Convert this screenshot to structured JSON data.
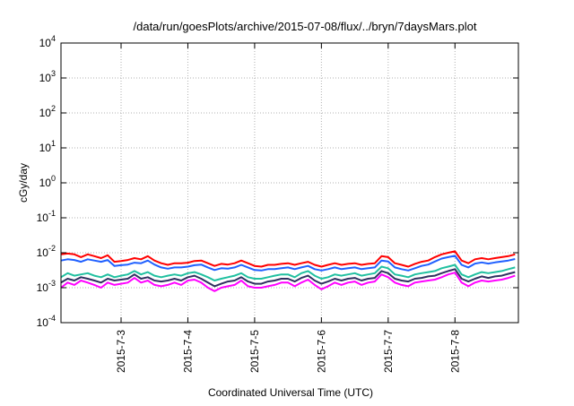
{
  "chart_data": {
    "type": "line",
    "title": "/data/run/goesPlots/archive/2015-07-08/flux/../bryn/7daysMars.plot",
    "xlabel": "Coordinated Universal Time (UTC)",
    "ylabel": "cGy/day",
    "y_scale": "log",
    "ylim": [
      0.0001,
      10000
    ],
    "y_ticks": [
      {
        "value": 0.0001,
        "base": "10",
        "exp": "-4"
      },
      {
        "value": 0.001,
        "base": "10",
        "exp": "-3"
      },
      {
        "value": 0.01,
        "base": "10",
        "exp": "-2"
      },
      {
        "value": 0.1,
        "base": "10",
        "exp": "-1"
      },
      {
        "value": 1,
        "base": "10",
        "exp": "0"
      },
      {
        "value": 10,
        "base": "10",
        "exp": "1"
      },
      {
        "value": 100,
        "base": "10",
        "exp": "2"
      },
      {
        "value": 1000,
        "base": "10",
        "exp": "3"
      },
      {
        "value": 10000,
        "base": "10",
        "exp": "4"
      }
    ],
    "x_ticks": [
      {
        "label": "2015-7-3",
        "day": 3
      },
      {
        "label": "2015-7-4",
        "day": 4
      },
      {
        "label": "2015-7-5",
        "day": 5
      },
      {
        "label": "2015-7-6",
        "day": 6
      },
      {
        "label": "2015-7-7",
        "day": 7
      },
      {
        "label": "2015-7-8",
        "day": 8
      }
    ],
    "xlim_days": [
      2.1,
      8.95
    ],
    "grid": true,
    "x": [
      2.1,
      2.2,
      2.3,
      2.4,
      2.5,
      2.6,
      2.7,
      2.8,
      2.9,
      3.0,
      3.1,
      3.2,
      3.3,
      3.4,
      3.5,
      3.6,
      3.7,
      3.8,
      3.9,
      4.0,
      4.1,
      4.2,
      4.3,
      4.4,
      4.5,
      4.6,
      4.7,
      4.8,
      4.9,
      5.0,
      5.1,
      5.2,
      5.3,
      5.4,
      5.5,
      5.6,
      5.7,
      5.8,
      5.9,
      6.0,
      6.1,
      6.2,
      6.3,
      6.4,
      6.5,
      6.6,
      6.7,
      6.8,
      6.9,
      7.0,
      7.1,
      7.2,
      7.3,
      7.4,
      7.5,
      7.6,
      7.7,
      7.8,
      7.9,
      8.0,
      8.1,
      8.2,
      8.3,
      8.4,
      8.5,
      8.6,
      8.7,
      8.8,
      8.9
    ],
    "series": [
      {
        "color": "#ff0000",
        "values": [
          0.009,
          0.0095,
          0.009,
          0.0075,
          0.009,
          0.008,
          0.007,
          0.0085,
          0.0055,
          0.0058,
          0.0062,
          0.007,
          0.0065,
          0.008,
          0.006,
          0.005,
          0.0045,
          0.005,
          0.005,
          0.0052,
          0.0058,
          0.006,
          0.005,
          0.0042,
          0.0048,
          0.0046,
          0.005,
          0.006,
          0.005,
          0.0042,
          0.004,
          0.0045,
          0.0045,
          0.0048,
          0.005,
          0.0045,
          0.005,
          0.0055,
          0.0045,
          0.004,
          0.0045,
          0.005,
          0.0045,
          0.0048,
          0.005,
          0.0045,
          0.0048,
          0.005,
          0.008,
          0.0075,
          0.005,
          0.0045,
          0.004,
          0.0048,
          0.0055,
          0.006,
          0.0075,
          0.009,
          0.01,
          0.011,
          0.006,
          0.005,
          0.0065,
          0.007,
          0.0065,
          0.007,
          0.0075,
          0.008,
          0.009
        ]
      },
      {
        "color": "#2060ff",
        "values": [
          0.006,
          0.0065,
          0.0062,
          0.0055,
          0.0065,
          0.006,
          0.0055,
          0.0062,
          0.0042,
          0.0044,
          0.0046,
          0.0052,
          0.005,
          0.006,
          0.0046,
          0.0038,
          0.0035,
          0.0038,
          0.0038,
          0.004,
          0.0044,
          0.0046,
          0.0038,
          0.0032,
          0.0036,
          0.0035,
          0.0038,
          0.0045,
          0.0038,
          0.0032,
          0.0031,
          0.0034,
          0.0034,
          0.0036,
          0.0038,
          0.0034,
          0.0038,
          0.0042,
          0.0034,
          0.0031,
          0.0034,
          0.0038,
          0.0034,
          0.0036,
          0.0038,
          0.0034,
          0.0036,
          0.0038,
          0.006,
          0.0056,
          0.0038,
          0.0034,
          0.0031,
          0.0036,
          0.0042,
          0.0046,
          0.0056,
          0.0068,
          0.0075,
          0.0082,
          0.0045,
          0.0038,
          0.0049,
          0.0053,
          0.0049,
          0.0053,
          0.0056,
          0.006,
          0.0066
        ]
      },
      {
        "color": "#20c0a0",
        "values": [
          0.002,
          0.0026,
          0.0022,
          0.0024,
          0.0026,
          0.0022,
          0.002,
          0.0024,
          0.002,
          0.0022,
          0.0024,
          0.003,
          0.0024,
          0.0028,
          0.0022,
          0.002,
          0.0022,
          0.0024,
          0.0022,
          0.0026,
          0.0028,
          0.0024,
          0.002,
          0.0016,
          0.0018,
          0.002,
          0.0022,
          0.0026,
          0.002,
          0.0018,
          0.0018,
          0.002,
          0.0022,
          0.0024,
          0.0024,
          0.002,
          0.0026,
          0.003,
          0.0022,
          0.0018,
          0.002,
          0.0024,
          0.0022,
          0.0024,
          0.0026,
          0.0022,
          0.0024,
          0.0026,
          0.004,
          0.0036,
          0.0024,
          0.0022,
          0.002,
          0.0024,
          0.0026,
          0.0028,
          0.003,
          0.0036,
          0.004,
          0.0045,
          0.0024,
          0.002,
          0.0024,
          0.0028,
          0.0026,
          0.0028,
          0.003,
          0.0034,
          0.0038
        ]
      },
      {
        "color": "#303060",
        "values": [
          0.0014,
          0.0018,
          0.0016,
          0.002,
          0.0018,
          0.0016,
          0.0014,
          0.0018,
          0.0016,
          0.0017,
          0.0018,
          0.0024,
          0.0018,
          0.002,
          0.0016,
          0.0015,
          0.0016,
          0.0018,
          0.0016,
          0.002,
          0.0022,
          0.0018,
          0.0014,
          0.0011,
          0.0013,
          0.0015,
          0.0016,
          0.002,
          0.0015,
          0.0013,
          0.0013,
          0.0015,
          0.0016,
          0.0018,
          0.0018,
          0.0015,
          0.0019,
          0.0022,
          0.0016,
          0.0013,
          0.0015,
          0.0018,
          0.0016,
          0.0018,
          0.0019,
          0.0016,
          0.0018,
          0.0019,
          0.003,
          0.0026,
          0.0018,
          0.0016,
          0.0015,
          0.0018,
          0.0019,
          0.0021,
          0.0022,
          0.0026,
          0.003,
          0.0034,
          0.0018,
          0.0015,
          0.0018,
          0.0021,
          0.0019,
          0.0021,
          0.0022,
          0.0025,
          0.0028
        ]
      },
      {
        "color": "#ff00ff",
        "values": [
          0.001,
          0.0014,
          0.0012,
          0.0016,
          0.0014,
          0.0012,
          0.001,
          0.0014,
          0.0012,
          0.0013,
          0.0014,
          0.0019,
          0.0014,
          0.0016,
          0.0012,
          0.0011,
          0.0012,
          0.0014,
          0.0012,
          0.0016,
          0.0017,
          0.0014,
          0.001,
          0.0008,
          0.001,
          0.0011,
          0.0012,
          0.0016,
          0.0011,
          0.001,
          0.001,
          0.0011,
          0.0012,
          0.0014,
          0.0014,
          0.0011,
          0.0014,
          0.0017,
          0.0012,
          0.0009,
          0.0011,
          0.0014,
          0.0012,
          0.0014,
          0.0015,
          0.0012,
          0.0014,
          0.0015,
          0.0024,
          0.002,
          0.0014,
          0.0012,
          0.0011,
          0.0014,
          0.0015,
          0.0016,
          0.0017,
          0.002,
          0.0024,
          0.0027,
          0.0014,
          0.0011,
          0.0014,
          0.0016,
          0.0015,
          0.0016,
          0.0017,
          0.0019,
          0.0022
        ]
      }
    ]
  }
}
